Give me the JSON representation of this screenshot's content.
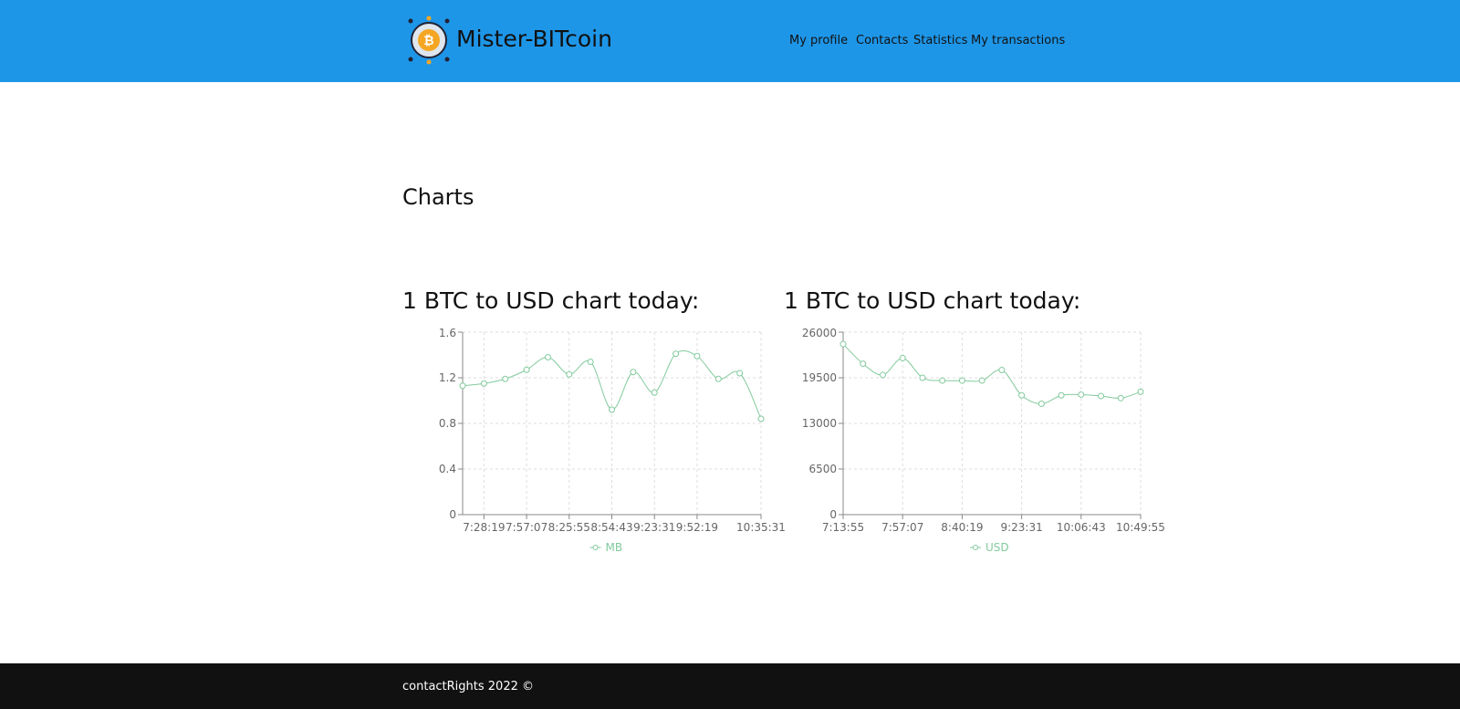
{
  "header": {
    "brand": "Mister-BITcoin",
    "nav": [
      "My profile",
      "Contacts",
      "Statistics",
      "My transactions"
    ]
  },
  "page_title": "Charts",
  "chart_data": [
    {
      "type": "line",
      "title": "1 BTC to USD chart today:",
      "categories": [
        null,
        "7:28:19",
        null,
        "7:57:07",
        null,
        "8:25:55",
        null,
        "8:54:43",
        null,
        "9:23:31",
        null,
        "9:52:19",
        null,
        null,
        "10:35:31"
      ],
      "series": [
        {
          "name": "MB",
          "color": "#82ca9d",
          "values": [
            1.13,
            1.15,
            1.19,
            1.27,
            1.38,
            1.23,
            1.34,
            0.92,
            1.25,
            1.07,
            1.41,
            1.39,
            1.19,
            1.24,
            0.84
          ]
        }
      ],
      "ylim": [
        0,
        1.6
      ],
      "yticks": [
        0,
        0.4,
        0.8,
        1.2,
        1.6
      ],
      "grid": true,
      "legend": "bottom"
    },
    {
      "type": "line",
      "title": "1 BTC to USD chart today:",
      "categories": [
        "7:13:55",
        null,
        null,
        "7:57:07",
        null,
        null,
        "8:40:19",
        null,
        null,
        "9:23:31",
        null,
        null,
        "10:06:43",
        null,
        null,
        "10:49:55"
      ],
      "series": [
        {
          "name": "USD",
          "color": "#82ca9d",
          "values": [
            24300,
            21500,
            19900,
            22300,
            19500,
            19100,
            19100,
            19100,
            20600,
            17000,
            15800,
            17000,
            17100,
            16900,
            16600,
            17500
          ]
        }
      ],
      "ylim": [
        0,
        26000
      ],
      "yticks": [
        0,
        6500,
        13000,
        19500,
        26000
      ],
      "grid": true,
      "legend": "bottom"
    }
  ],
  "footer": {
    "text": "contactRights 2022 ©"
  }
}
